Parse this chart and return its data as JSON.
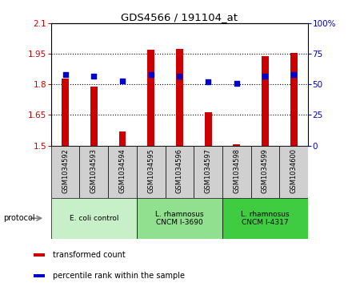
{
  "title": "GDS4566 / 191104_at",
  "samples": [
    "GSM1034592",
    "GSM1034593",
    "GSM1034594",
    "GSM1034595",
    "GSM1034596",
    "GSM1034597",
    "GSM1034598",
    "GSM1034599",
    "GSM1034600"
  ],
  "transformed_count": [
    1.83,
    1.79,
    1.57,
    1.97,
    1.975,
    1.665,
    1.505,
    1.94,
    1.955
  ],
  "percentile_rank": [
    58,
    57,
    53,
    58,
    57,
    52,
    51,
    57,
    58
  ],
  "ylim_left": [
    1.5,
    2.1
  ],
  "ylim_right": [
    0,
    100
  ],
  "yticks_left": [
    1.5,
    1.65,
    1.8,
    1.95,
    2.1
  ],
  "ytick_labels_left": [
    "1.5",
    "1.65",
    "1.8",
    "1.95",
    "2.1"
  ],
  "yticks_right": [
    0,
    25,
    50,
    75,
    100
  ],
  "ytick_labels_right": [
    "0",
    "25",
    "50",
    "75",
    "100%"
  ],
  "bar_color": "#cc0000",
  "dot_color": "#0000cc",
  "bar_width": 0.25,
  "groups": [
    {
      "label": "E. coli control",
      "start": 0,
      "end": 3,
      "color": "#c8f0c8"
    },
    {
      "label": "L. rhamnosus\nCNCM I-3690",
      "start": 3,
      "end": 6,
      "color": "#90e090"
    },
    {
      "label": "L. rhamnosus\nCNCM I-4317",
      "start": 6,
      "end": 9,
      "color": "#40cc40"
    }
  ],
  "legend_items": [
    {
      "label": "transformed count",
      "color": "#cc0000"
    },
    {
      "label": "percentile rank within the sample",
      "color": "#0000cc"
    }
  ],
  "tick_label_color_left": "#cc0000",
  "tick_label_color_right": "#0000cc",
  "sample_box_color": "#d0d0d0",
  "figure_bg": "#ffffff"
}
